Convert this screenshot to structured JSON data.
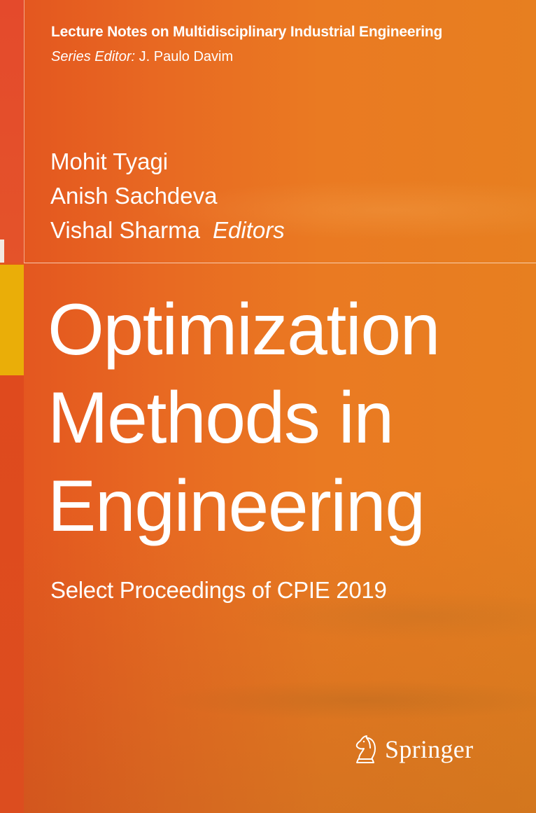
{
  "series": {
    "title": "Lecture Notes on Multidisciplinary Industrial Engineering",
    "editor_label": "Series Editor:",
    "editor_name": "J. Paulo Davim"
  },
  "editors": {
    "names": [
      "Mohit Tyagi",
      "Anish Sachdeva",
      "Vishal Sharma"
    ],
    "role": "Editors"
  },
  "book": {
    "title_lines": [
      "Optimization",
      "Methods in",
      "Engineering"
    ],
    "subtitle": "Select Proceedings of CPIE 2019"
  },
  "publisher": {
    "name": "Springer",
    "logo_icon": "chess-knight-icon"
  },
  "colors": {
    "background": "#e86922",
    "accent": "#eaae08",
    "text": "#ffffff"
  }
}
